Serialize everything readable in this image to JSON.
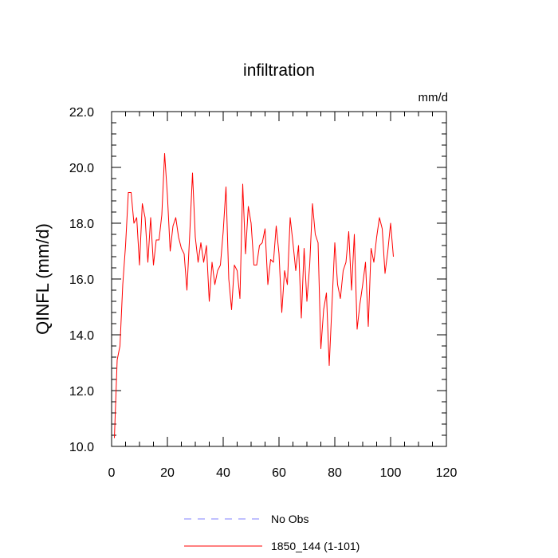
{
  "chart_data": {
    "type": "line",
    "title": "infiltration",
    "units": "mm/d",
    "ylabel": "QINFL  (mm/d)",
    "xlabel": "",
    "xlim": [
      0,
      120
    ],
    "ylim": [
      10,
      22
    ],
    "xticks": [
      0,
      20,
      40,
      60,
      80,
      100,
      120
    ],
    "xtick_labels": [
      "0",
      "20",
      "40",
      "60",
      "80",
      "100",
      "120"
    ],
    "yticks": [
      10,
      12,
      14,
      16,
      18,
      20,
      22
    ],
    "ytick_labels": [
      "10.0",
      "12.0",
      "14.0",
      "16.0",
      "18.0",
      "20.0",
      "22.0"
    ],
    "grid": false,
    "legend_position": "bottom",
    "series": [
      {
        "name": "1850_144 (1-101)",
        "color": "#ff0000",
        "style": "solid",
        "x": [
          1,
          2,
          3,
          4,
          5,
          6,
          7,
          8,
          9,
          10,
          11,
          12,
          13,
          14,
          15,
          16,
          17,
          18,
          19,
          20,
          21,
          22,
          23,
          24,
          25,
          26,
          27,
          28,
          29,
          30,
          31,
          32,
          33,
          34,
          35,
          36,
          37,
          38,
          39,
          40,
          41,
          42,
          43,
          44,
          45,
          46,
          47,
          48,
          49,
          50,
          51,
          52,
          53,
          54,
          55,
          56,
          57,
          58,
          59,
          60,
          61,
          62,
          63,
          64,
          65,
          66,
          67,
          68,
          69,
          70,
          71,
          72,
          73,
          74,
          75,
          76,
          77,
          78,
          79,
          80,
          81,
          82,
          83,
          84,
          85,
          86,
          87,
          88,
          89,
          90,
          91,
          92,
          93,
          94,
          95,
          96,
          97,
          98,
          99,
          100,
          101
        ],
        "values": [
          10.3,
          13.1,
          13.6,
          15.8,
          17.2,
          19.1,
          19.1,
          18.0,
          18.2,
          16.5,
          18.7,
          18.2,
          16.6,
          18.2,
          16.5,
          17.4,
          17.4,
          18.3,
          20.5,
          19.0,
          17.0,
          17.9,
          18.2,
          17.5,
          17.1,
          16.9,
          15.6,
          17.6,
          19.8,
          17.5,
          16.6,
          17.3,
          16.6,
          17.2,
          15.2,
          16.6,
          15.8,
          16.3,
          16.5,
          17.7,
          19.3,
          16.0,
          14.9,
          16.5,
          16.3,
          15.3,
          19.4,
          16.9,
          18.6,
          18.0,
          16.5,
          16.5,
          17.2,
          17.3,
          17.8,
          15.8,
          16.7,
          16.6,
          17.9,
          16.9,
          14.8,
          16.3,
          15.8,
          18.2,
          17.3,
          16.3,
          17.2,
          14.6,
          17.1,
          15.2,
          16.5,
          18.7,
          17.6,
          17.3,
          13.5,
          14.9,
          15.5,
          12.9,
          15.1,
          17.3,
          15.8,
          15.3,
          16.3,
          16.6,
          17.7,
          15.6,
          17.6,
          14.2,
          15.1,
          15.8,
          16.6,
          14.3,
          17.1,
          16.6,
          17.5,
          18.2,
          17.8,
          16.2,
          17.0,
          18.0,
          16.8
        ]
      }
    ],
    "legend": [
      {
        "label": "No Obs",
        "color": "#8080ff",
        "style": "dashed"
      },
      {
        "label": "1850_144 (1-101)",
        "color": "#ff0000",
        "style": "solid"
      }
    ]
  }
}
